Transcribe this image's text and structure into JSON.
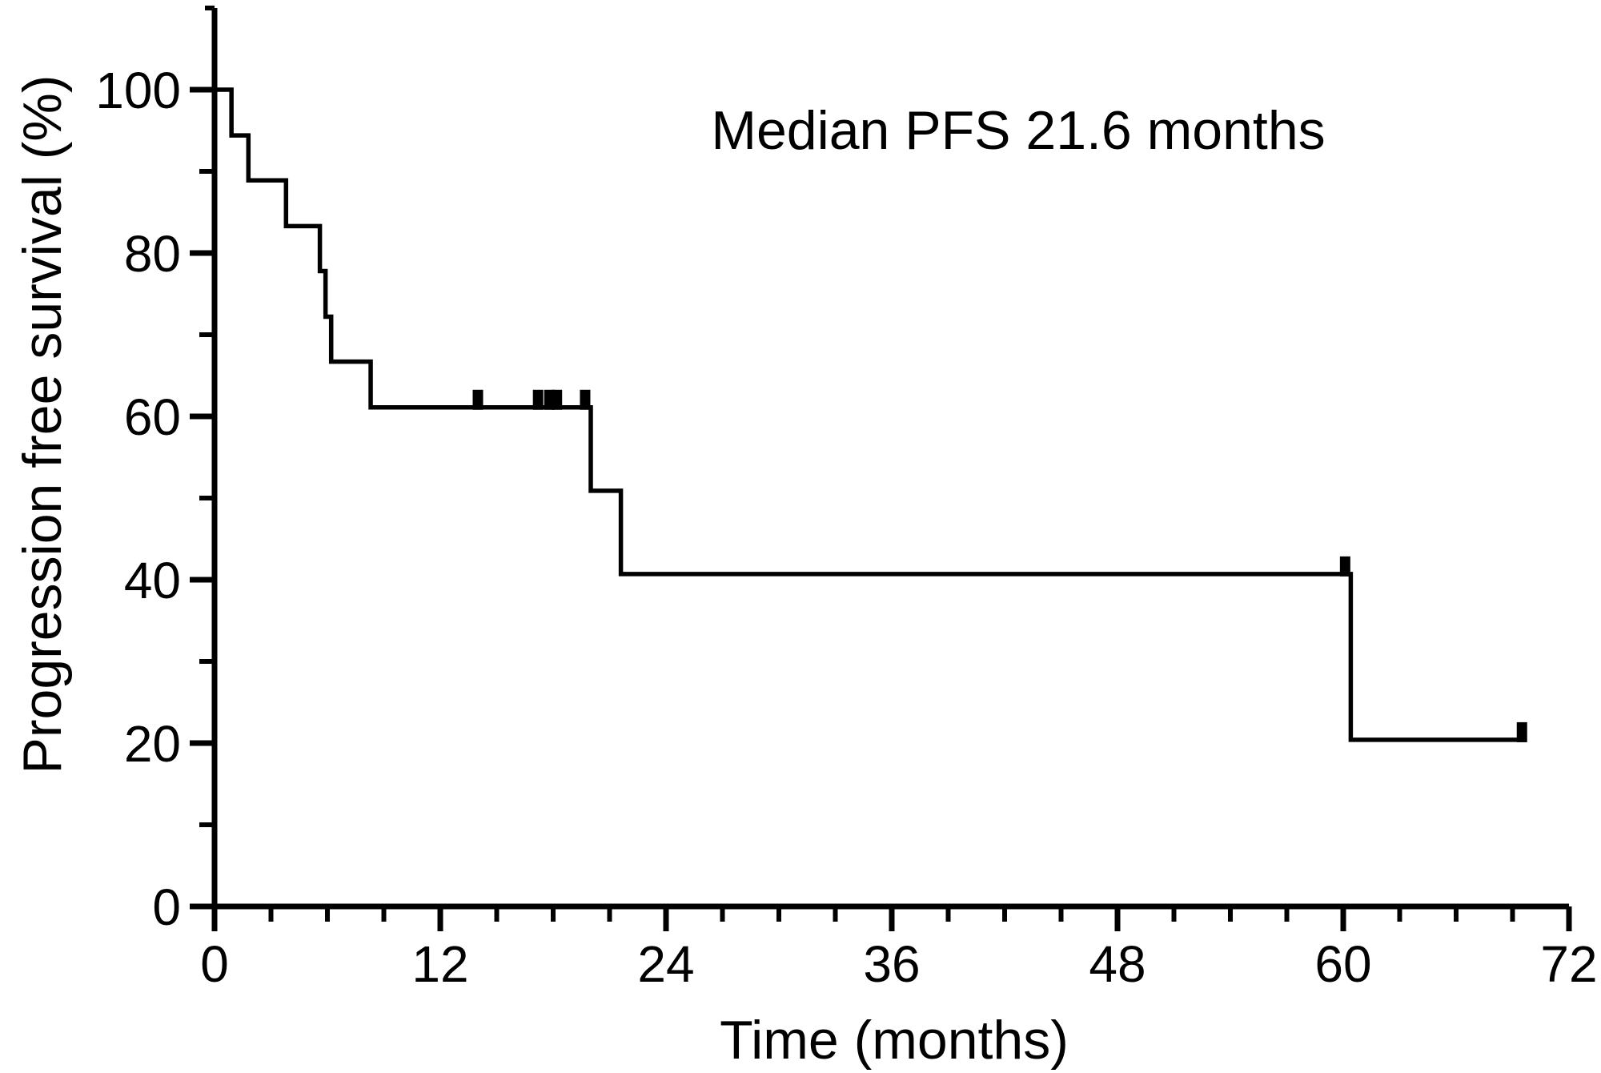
{
  "figure": {
    "background_color": "#ffffff",
    "ink_color": "#000000"
  },
  "chart_data": {
    "type": "line",
    "subtype": "kaplan-meier-step-curve",
    "annotation": "Median PFS 21.6 months",
    "xlabel": "Time (months)",
    "ylabel": "Progression free survival (%)",
    "xlim": [
      0,
      72
    ],
    "ylim": [
      0,
      110
    ],
    "x_major_ticks": [
      0,
      12,
      24,
      36,
      48,
      60,
      72
    ],
    "x_minor_tick_step": 3,
    "y_major_ticks": [
      0,
      20,
      40,
      60,
      80,
      100
    ],
    "y_minor_ticks": [
      10,
      30,
      50,
      70,
      90,
      110
    ],
    "grid": false,
    "legend_position": "none",
    "median_pfs_months": 21.6,
    "series": [
      {
        "name": "Progression free survival",
        "color": "#000000",
        "steps": [
          {
            "time": 0,
            "survival": 100
          },
          {
            "time": 0.9,
            "survival": 94.4
          },
          {
            "time": 1.8,
            "survival": 88.9
          },
          {
            "time": 3.8,
            "survival": 83.3
          },
          {
            "time": 5.6,
            "survival": 77.8
          },
          {
            "time": 5.9,
            "survival": 72.2
          },
          {
            "time": 6.2,
            "survival": 66.7
          },
          {
            "time": 8.3,
            "survival": 61.1
          },
          {
            "time": 20.0,
            "survival": 50.9
          },
          {
            "time": 21.6,
            "survival": 40.7
          },
          {
            "time": 60.4,
            "survival": 20.4
          }
        ],
        "end_time": 69.7,
        "censor_marks": [
          {
            "time": 14.0,
            "survival": 61.1
          },
          {
            "time": 17.2,
            "survival": 61.1
          },
          {
            "time": 17.8,
            "survival": 61.1
          },
          {
            "time": 18.2,
            "survival": 61.1
          },
          {
            "time": 19.7,
            "survival": 61.1
          },
          {
            "time": 60.1,
            "survival": 40.7
          },
          {
            "time": 69.5,
            "survival": 20.4
          }
        ]
      }
    ]
  }
}
